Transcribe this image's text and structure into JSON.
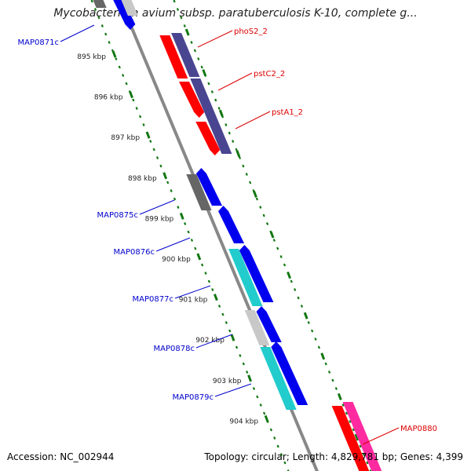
{
  "title": "Mycobacterium avium subsp. paratuberculosis K-10, complete g...",
  "accession": "Accession: NC_002944",
  "summary": "Topology: circular; Length: 4,829,781 bp; Genes: 4,399",
  "ticks": [
    {
      "kbp": 895,
      "label": "895 kbp"
    },
    {
      "kbp": 896,
      "label": "896 kbp"
    },
    {
      "kbp": 897,
      "label": "897 kbp"
    },
    {
      "kbp": 898,
      "label": "898 kbp"
    },
    {
      "kbp": 899,
      "label": "899 kbp"
    },
    {
      "kbp": 900,
      "label": "900 kbp"
    },
    {
      "kbp": 901,
      "label": "901 kbp"
    },
    {
      "kbp": 902,
      "label": "902 kbp"
    },
    {
      "kbp": 903,
      "label": "903 kbp"
    },
    {
      "kbp": 904,
      "label": "904 kbp"
    }
  ],
  "gene_labels": [
    {
      "name": "MAP0871c",
      "side": "left",
      "color": "#0000cc"
    },
    {
      "name": "phoS2_2",
      "side": "right",
      "color": "#dd0000"
    },
    {
      "name": "pstC2_2",
      "side": "right",
      "color": "#dd0000"
    },
    {
      "name": "pstA1_2",
      "side": "right",
      "color": "#dd0000"
    },
    {
      "name": "MAP0875c",
      "side": "left",
      "color": "#0000cc"
    },
    {
      "name": "MAP0876c",
      "side": "left",
      "color": "#0000cc"
    },
    {
      "name": "MAP0877c",
      "side": "left",
      "color": "#0000cc"
    },
    {
      "name": "MAP0878c",
      "side": "left",
      "color": "#0000cc"
    },
    {
      "name": "MAP0879c",
      "side": "left",
      "color": "#0000cc"
    },
    {
      "name": "MAP0880",
      "side": "right",
      "color": "#dd0000"
    }
  ],
  "colors": {
    "backbone": "#888888",
    "ticks": "#117711",
    "red": "#ff0000",
    "navy": "#4a4590",
    "blue": "#0000ee",
    "gray": "#666666",
    "cyan": "#22cccc",
    "lightgray": "#c8c8c8",
    "pink": "#ff2aa0"
  }
}
